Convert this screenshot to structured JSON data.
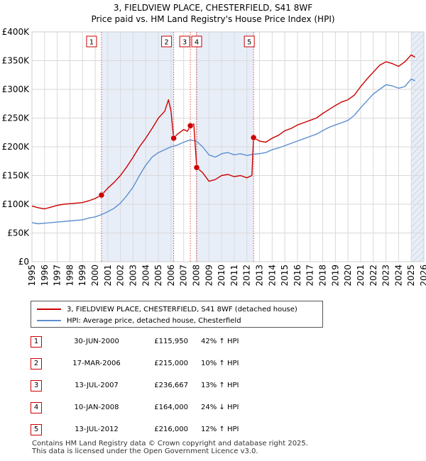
{
  "title_line1": "3, FIELDVIEW PLACE, CHESTERFIELD, S41 8WF",
  "title_line2": "Price paid vs. HM Land Registry's House Price Index (HPI)",
  "colors": {
    "property": "#cc0000",
    "hpi": "#5b8fd0",
    "shade": "#e8eef8",
    "grid": "#d9d9d9",
    "marker_line": "#cc0000",
    "hatch": "#bbbbbb"
  },
  "chart_data": {
    "type": "line",
    "title": "3, FIELDVIEW PLACE, CHESTERFIELD, S41 8WF",
    "subtitle": "Price paid vs. HM Land Registry's House Price Index (HPI)",
    "xlabel": "",
    "ylabel": "",
    "xlim": [
      1995,
      2026
    ],
    "ylim": [
      0,
      400000
    ],
    "x_ticks": [
      1995,
      1996,
      1997,
      1998,
      1999,
      2000,
      2001,
      2002,
      2003,
      2004,
      2005,
      2006,
      2007,
      2008,
      2009,
      2010,
      2011,
      2012,
      2013,
      2014,
      2015,
      2016,
      2017,
      2018,
      2019,
      2020,
      2021,
      2022,
      2023,
      2024,
      2025,
      2026
    ],
    "y_ticks": [
      0,
      50000,
      100000,
      150000,
      200000,
      250000,
      300000,
      350000,
      400000
    ],
    "y_tick_labels": [
      "£0",
      "£50K",
      "£100K",
      "£150K",
      "£200K",
      "£250K",
      "£300K",
      "£350K",
      "£400K"
    ],
    "grid": true,
    "shaded_bands": [
      [
        2000.5,
        2006.21
      ],
      [
        2008.03,
        2012.53
      ],
      [
        2025.0,
        2026
      ]
    ],
    "hatched_from": 2025.0,
    "series": [
      {
        "name": "3, FIELDVIEW PLACE, CHESTERFIELD, S41 8WF (detached house)",
        "color": "#cc0000",
        "x": [
          1995.0,
          1995.5,
          1996.0,
          1996.5,
          1997.0,
          1997.5,
          1998.0,
          1998.5,
          1999.0,
          1999.5,
          2000.0,
          2000.5,
          2001.0,
          2001.5,
          2002.0,
          2002.5,
          2003.0,
          2003.5,
          2004.0,
          2004.5,
          2005.0,
          2005.5,
          2005.8,
          2006.0,
          2006.21,
          2006.5,
          2007.0,
          2007.3,
          2007.53,
          2007.8,
          2008.0,
          2008.03,
          2008.5,
          2009.0,
          2009.5,
          2010.0,
          2010.5,
          2011.0,
          2011.5,
          2012.0,
          2012.4,
          2012.53,
          2013.0,
          2013.5,
          2014.0,
          2014.5,
          2015.0,
          2015.5,
          2016.0,
          2016.5,
          2017.0,
          2017.5,
          2018.0,
          2018.5,
          2019.0,
          2019.5,
          2020.0,
          2020.5,
          2021.0,
          2021.5,
          2022.0,
          2022.5,
          2023.0,
          2023.5,
          2024.0,
          2024.5,
          2025.0,
          2025.3
        ],
        "y": [
          97000,
          94000,
          92000,
          95000,
          98000,
          100000,
          101000,
          102000,
          103000,
          106000,
          110000,
          115950,
          128000,
          138000,
          150000,
          165000,
          182000,
          200000,
          215000,
          232000,
          250000,
          262000,
          282000,
          262000,
          215000,
          222000,
          230000,
          227000,
          236667,
          240000,
          175000,
          164000,
          155000,
          140000,
          143000,
          150000,
          152000,
          148000,
          150000,
          146000,
          150000,
          216000,
          210000,
          208000,
          215000,
          220000,
          228000,
          232000,
          238000,
          242000,
          246000,
          250000,
          258000,
          265000,
          272000,
          278000,
          282000,
          290000,
          305000,
          318000,
          330000,
          342000,
          348000,
          345000,
          340000,
          348000,
          360000,
          356000
        ]
      },
      {
        "name": "HPI: Average price, detached house, Chesterfield",
        "color": "#5b8fd0",
        "x": [
          1995.0,
          1995.5,
          1996.0,
          1996.5,
          1997.0,
          1997.5,
          1998.0,
          1998.5,
          1999.0,
          1999.5,
          2000.0,
          2000.5,
          2001.0,
          2001.5,
          2002.0,
          2002.5,
          2003.0,
          2003.5,
          2004.0,
          2004.5,
          2005.0,
          2005.5,
          2006.0,
          2006.5,
          2007.0,
          2007.5,
          2008.0,
          2008.5,
          2009.0,
          2009.5,
          2010.0,
          2010.5,
          2011.0,
          2011.5,
          2012.0,
          2012.5,
          2013.0,
          2013.5,
          2014.0,
          2014.5,
          2015.0,
          2015.5,
          2016.0,
          2016.5,
          2017.0,
          2017.5,
          2018.0,
          2018.5,
          2019.0,
          2019.5,
          2020.0,
          2020.5,
          2021.0,
          2021.5,
          2022.0,
          2022.5,
          2023.0,
          2023.5,
          2024.0,
          2024.5,
          2025.0,
          2025.3
        ],
        "y": [
          68000,
          66000,
          67000,
          68000,
          69000,
          70000,
          71000,
          72000,
          73000,
          76000,
          78000,
          82000,
          87000,
          93000,
          102000,
          115000,
          130000,
          150000,
          168000,
          182000,
          190000,
          195000,
          200000,
          203000,
          208000,
          212000,
          210000,
          200000,
          186000,
          182000,
          188000,
          190000,
          186000,
          188000,
          185000,
          187000,
          188000,
          190000,
          195000,
          198000,
          202000,
          206000,
          210000,
          214000,
          218000,
          222000,
          228000,
          234000,
          238000,
          242000,
          246000,
          255000,
          268000,
          280000,
          292000,
          300000,
          308000,
          306000,
          302000,
          305000,
          318000,
          315000
        ]
      }
    ],
    "sales": [
      {
        "id": "1",
        "x": 2000.5,
        "y": 115950
      },
      {
        "id": "2",
        "x": 2006.21,
        "y": 215000
      },
      {
        "id": "3",
        "x": 2007.53,
        "y": 236667
      },
      {
        "id": "4",
        "x": 2008.03,
        "y": 164000
      },
      {
        "id": "5",
        "x": 2012.53,
        "y": 216000
      }
    ]
  },
  "legend": {
    "property_label": "3, FIELDVIEW PLACE, CHESTERFIELD, S41 8WF (detached house)",
    "hpi_label": "HPI: Average price, detached house, Chesterfield"
  },
  "sales_table": [
    {
      "num": "1",
      "date": "30-JUN-2000",
      "price": "£115,950",
      "hpi": "42% ↑ HPI"
    },
    {
      "num": "2",
      "date": "17-MAR-2006",
      "price": "£215,000",
      "hpi": "10% ↑ HPI"
    },
    {
      "num": "3",
      "date": "13-JUL-2007",
      "price": "£236,667",
      "hpi": "13% ↑ HPI"
    },
    {
      "num": "4",
      "date": "10-JAN-2008",
      "price": "£164,000",
      "hpi": "24% ↓ HPI"
    },
    {
      "num": "5",
      "date": "13-JUL-2012",
      "price": "£216,000",
      "hpi": "12% ↑ HPI"
    }
  ],
  "footer_line1": "Contains HM Land Registry data © Crown copyright and database right 2025.",
  "footer_line2": "This data is licensed under the Open Government Licence v3.0."
}
